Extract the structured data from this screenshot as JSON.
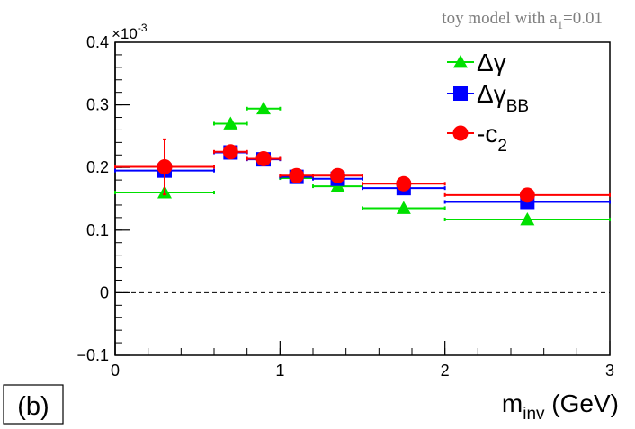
{
  "panel_label": "(b)",
  "chart_data": {
    "type": "scatter",
    "title": "toy model with a",
    "title_subscript": "1",
    "title_suffix": "=0.01",
    "xlabel": "m",
    "xlabel_subscript": "inv",
    "xlabel_suffix": " (GeV)",
    "ylabel": "",
    "y_exponent_label": "×10",
    "y_exponent": "-3",
    "xlim": [
      0,
      3
    ],
    "ylim": [
      -0.1,
      0.4
    ],
    "xticks": [
      0,
      1,
      2,
      3
    ],
    "xtick_labels": [
      "0",
      "1",
      "2",
      "3"
    ],
    "yticks": [
      -0.1,
      0,
      0.1,
      0.2,
      0.3,
      0.4
    ],
    "ytick_labels": [
      "−0.1",
      "0",
      "0.1",
      "0.2",
      "0.3",
      "0.4"
    ],
    "zero_line": true,
    "legend_position": "top-right",
    "series": [
      {
        "name": "Δγ",
        "name_subscript": "",
        "marker": "triangle",
        "color": "#00e000",
        "points": [
          {
            "x": 0.3,
            "y": 0.16,
            "xerr": 0.3,
            "yerr": 0.0
          },
          {
            "x": 0.7,
            "y": 0.27,
            "xerr": 0.1,
            "yerr": 0.0
          },
          {
            "x": 0.9,
            "y": 0.294,
            "xerr": 0.1,
            "yerr": 0.0
          },
          {
            "x": 1.1,
            "y": 0.183,
            "xerr": 0.1,
            "yerr": 0.0
          },
          {
            "x": 1.35,
            "y": 0.17,
            "xerr": 0.15,
            "yerr": 0.0
          },
          {
            "x": 1.75,
            "y": 0.135,
            "xerr": 0.25,
            "yerr": 0.0
          },
          {
            "x": 2.5,
            "y": 0.117,
            "xerr": 0.5,
            "yerr": 0.0
          }
        ]
      },
      {
        "name": "Δγ",
        "name_subscript": "BB",
        "marker": "square",
        "color": "#0000ff",
        "points": [
          {
            "x": 0.3,
            "y": 0.195,
            "xerr": 0.3,
            "yerr": 0.0
          },
          {
            "x": 0.7,
            "y": 0.224,
            "xerr": 0.1,
            "yerr": 0.0
          },
          {
            "x": 0.9,
            "y": 0.213,
            "xerr": 0.1,
            "yerr": 0.0
          },
          {
            "x": 1.1,
            "y": 0.185,
            "xerr": 0.1,
            "yerr": 0.0
          },
          {
            "x": 1.35,
            "y": 0.182,
            "xerr": 0.15,
            "yerr": 0.0
          },
          {
            "x": 1.75,
            "y": 0.167,
            "xerr": 0.25,
            "yerr": 0.0
          },
          {
            "x": 2.5,
            "y": 0.145,
            "xerr": 0.5,
            "yerr": 0.0
          }
        ]
      },
      {
        "name": "-c",
        "name_subscript": "2",
        "marker": "circle",
        "color": "#ff0000",
        "points": [
          {
            "x": 0.3,
            "y": 0.201,
            "xerr": 0.3,
            "yerr": 0.044
          },
          {
            "x": 0.7,
            "y": 0.225,
            "xerr": 0.1,
            "yerr": 0.008
          },
          {
            "x": 0.9,
            "y": 0.214,
            "xerr": 0.1,
            "yerr": 0.005
          },
          {
            "x": 1.1,
            "y": 0.187,
            "xerr": 0.1,
            "yerr": 0.004
          },
          {
            "x": 1.35,
            "y": 0.187,
            "xerr": 0.15,
            "yerr": 0.003
          },
          {
            "x": 1.75,
            "y": 0.174,
            "xerr": 0.25,
            "yerr": 0.003
          },
          {
            "x": 2.5,
            "y": 0.156,
            "xerr": 0.5,
            "yerr": 0.002
          }
        ]
      }
    ]
  }
}
